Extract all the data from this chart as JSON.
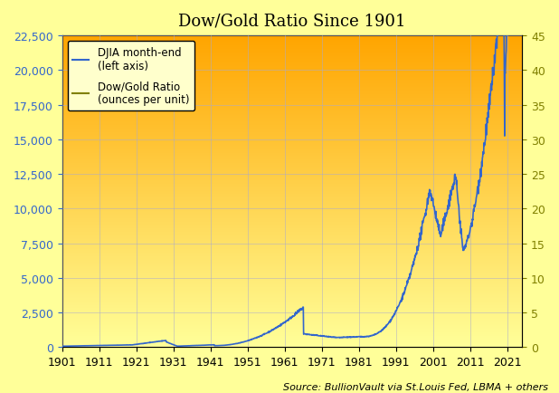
{
  "title": "Dow/Gold Ratio Since 1901",
  "source_text": "Source: BullionVault via St.Louis Fed, LBMA + others",
  "background_top": "#FFA500",
  "background_bottom": "#FFFF99",
  "djia_color": "#3366CC",
  "ratio_color": "#808000",
  "left_ylim": [
    0,
    22500
  ],
  "right_ylim": [
    0,
    45
  ],
  "left_yticks": [
    0,
    2500,
    5000,
    7500,
    10000,
    12500,
    15000,
    17500,
    20000,
    22500
  ],
  "right_yticks": [
    0,
    5,
    10,
    15,
    20,
    25,
    30,
    35,
    40,
    45
  ],
  "xticks": [
    1901,
    1911,
    1921,
    1931,
    1941,
    1951,
    1961,
    1971,
    1981,
    1991,
    2001,
    2011,
    2021
  ],
  "legend_djia": "DJIA month-end\n(left axis)",
  "legend_ratio": "Dow/Gold Ratio\n(ounces per unit)",
  "title_fontsize": 13,
  "tick_fontsize": 9,
  "legend_fontsize": 8.5,
  "source_fontsize": 8
}
